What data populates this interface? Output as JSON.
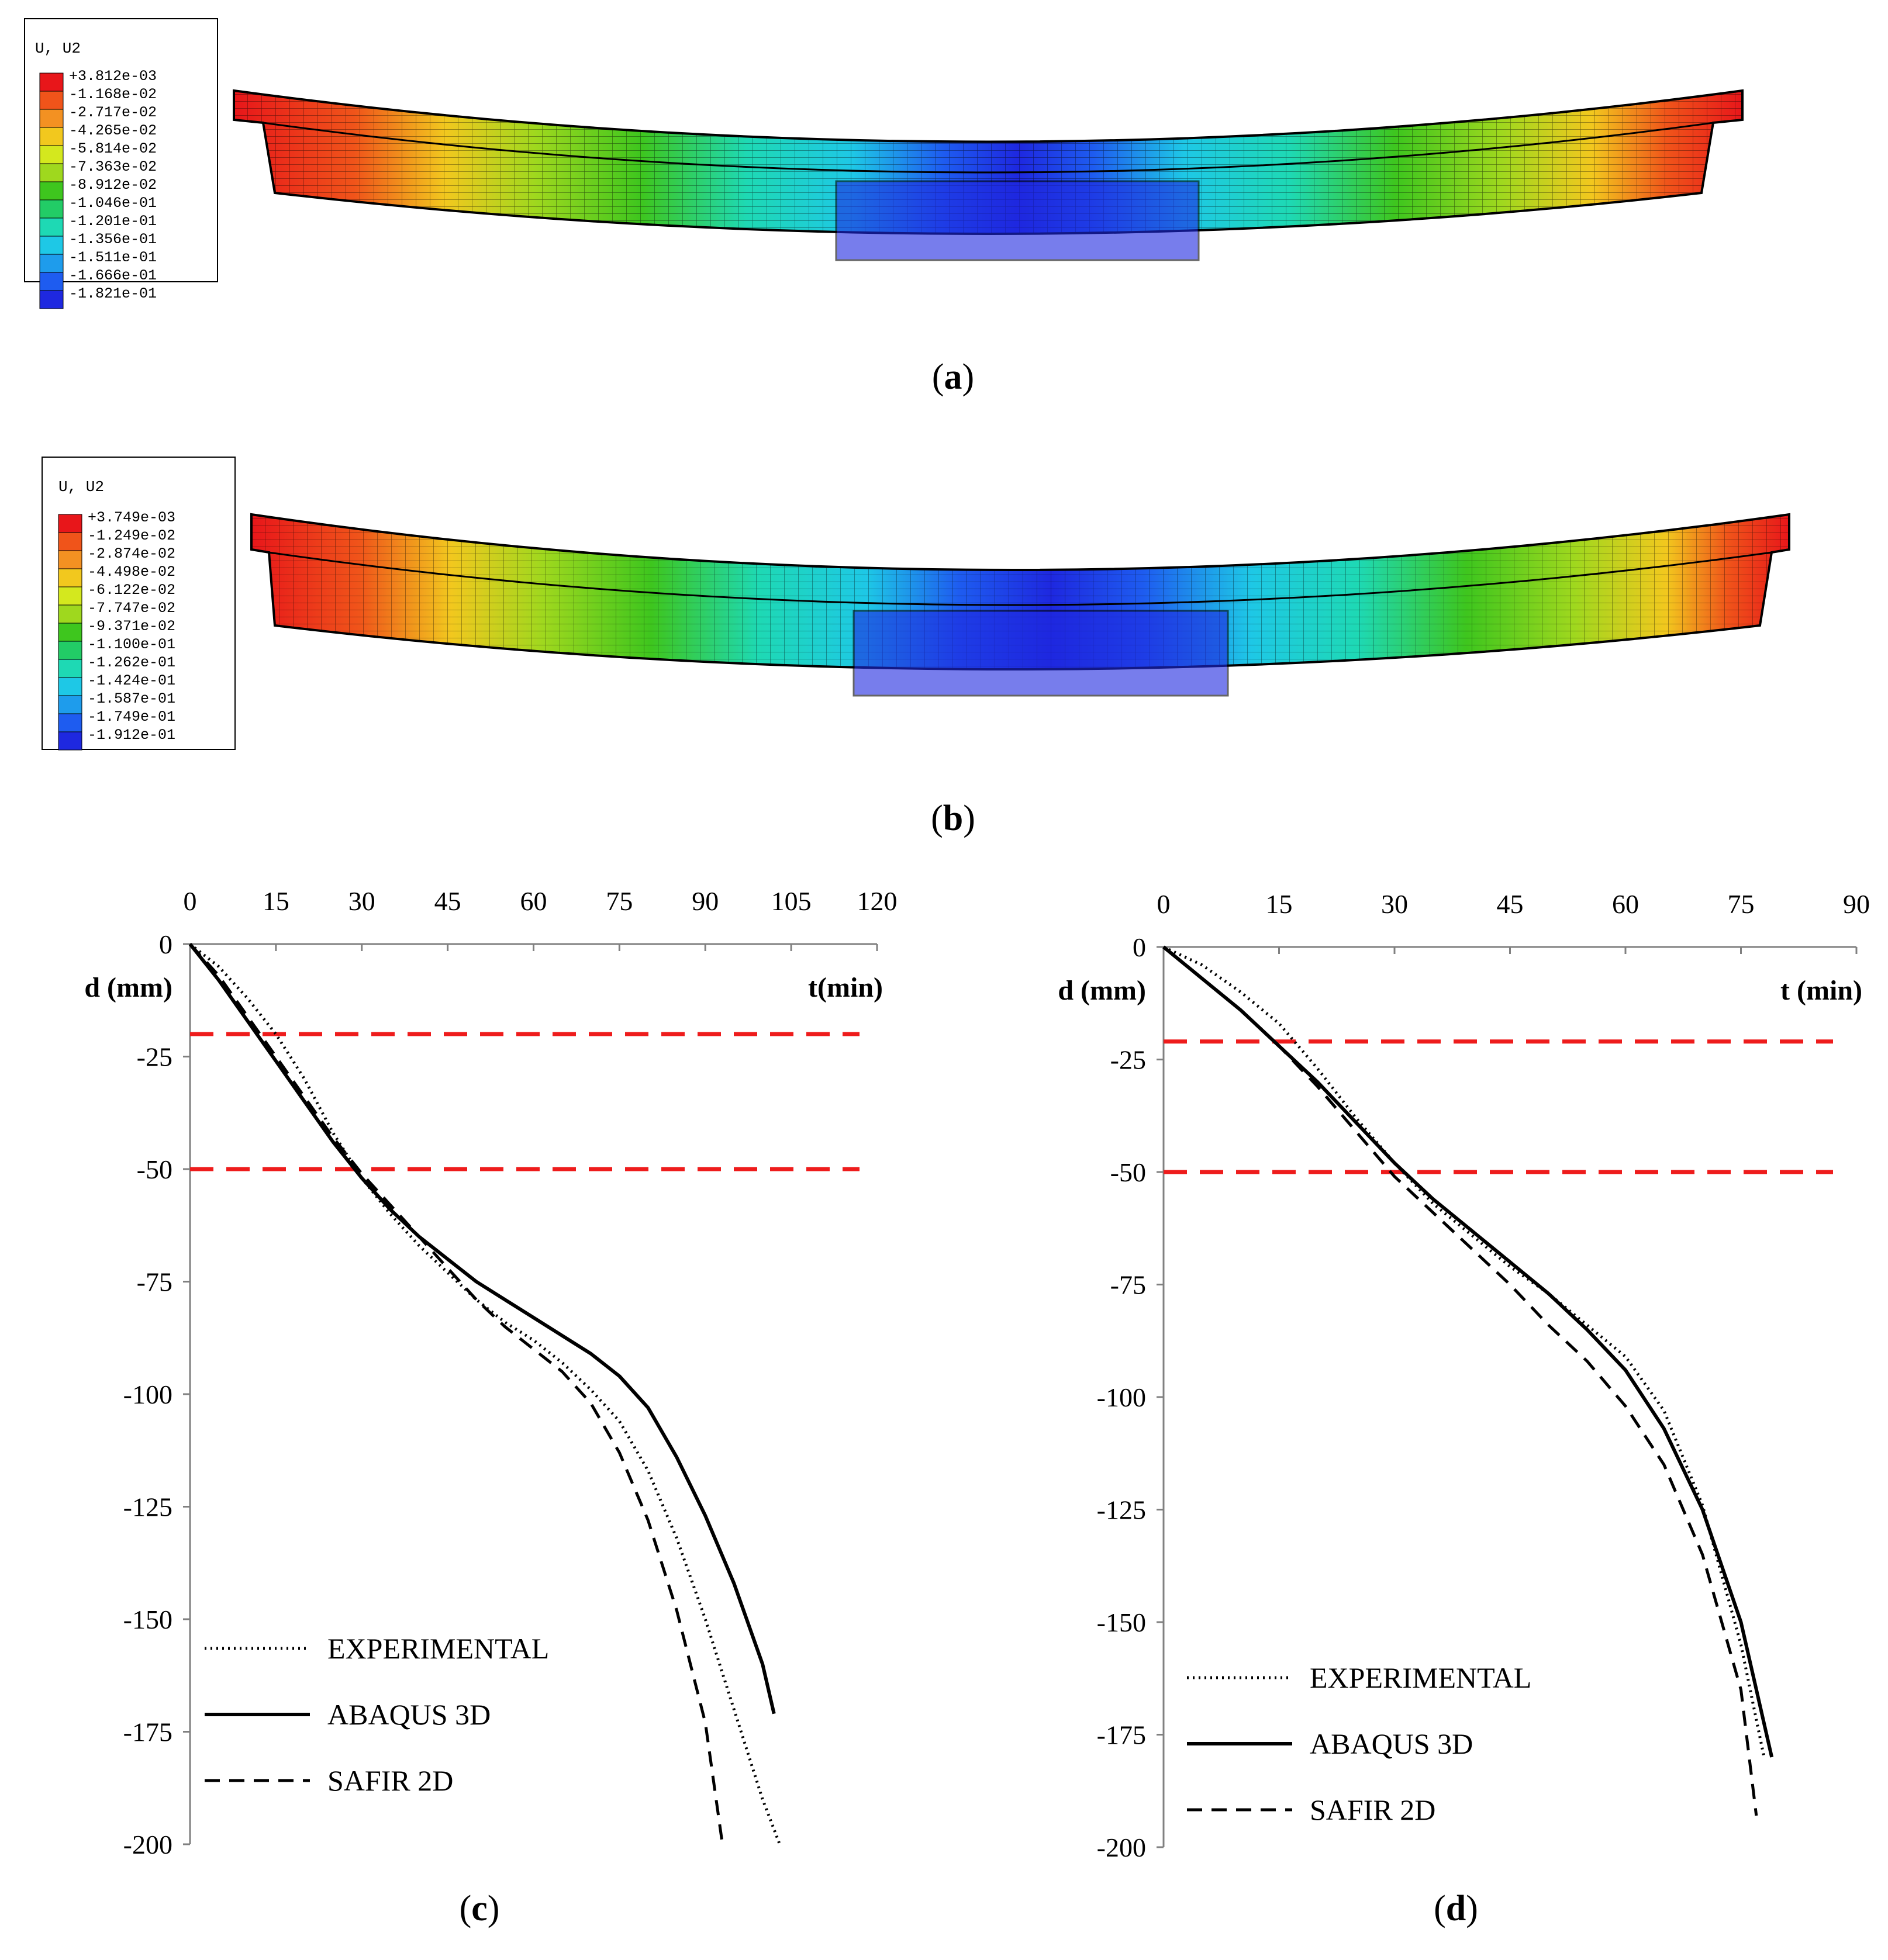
{
  "panels": {
    "a": {
      "caption": "a",
      "legend_title": "U, U2",
      "legend_values": [
        "+3.812e-03",
        "-1.168e-02",
        "-2.717e-02",
        "-4.265e-02",
        "-5.814e-02",
        "-7.363e-02",
        "-8.912e-02",
        "-1.046e-01",
        "-1.201e-01",
        "-1.356e-01",
        "-1.511e-01",
        "-1.666e-01",
        "-1.821e-01"
      ]
    },
    "b": {
      "caption": "b",
      "legend_title": "U, U2",
      "legend_values": [
        "+3.749e-03",
        "-1.249e-02",
        "-2.874e-02",
        "-4.498e-02",
        "-6.122e-02",
        "-7.747e-02",
        "-9.371e-02",
        "-1.100e-01",
        "-1.262e-01",
        "-1.424e-01",
        "-1.587e-01",
        "-1.749e-01",
        "-1.912e-01"
      ]
    },
    "c": {
      "caption": "c"
    },
    "d": {
      "caption": "d"
    }
  },
  "legend_colors": [
    "#e8161a",
    "#f0541a",
    "#f39122",
    "#f2c81e",
    "#d4e81e",
    "#9fd81e",
    "#3ec61e",
    "#22cc66",
    "#1ed9b4",
    "#1ec8e6",
    "#1e9cec",
    "#1e5cf0",
    "#1e28e0"
  ],
  "chart_data": [
    {
      "id": "c",
      "type": "line",
      "xlabel": "t(min)",
      "ylabel": "d (mm)",
      "xlim": [
        0,
        120
      ],
      "ylim": [
        -200,
        0
      ],
      "xticks": [
        0,
        15,
        30,
        45,
        60,
        75,
        90,
        105,
        120
      ],
      "yticks": [
        0,
        -25,
        -50,
        -75,
        -100,
        -125,
        -150,
        -175,
        -200
      ],
      "reference_lines": [
        -20,
        -50
      ],
      "legend": [
        "EXPERIMENTAL",
        "ABAQUS 3D",
        "SAFIR 2D"
      ],
      "series": [
        {
          "name": "EXPERIMENTAL",
          "style": "dotted",
          "x": [
            0,
            5,
            10,
            15,
            20,
            25,
            30,
            35,
            40,
            45,
            50,
            55,
            60,
            65,
            70,
            75,
            80,
            85,
            90,
            95,
            100,
            103
          ],
          "y": [
            0,
            -5,
            -12,
            -20,
            -30,
            -42,
            -52,
            -60,
            -67,
            -73,
            -79,
            -84,
            -88,
            -93,
            -99,
            -106,
            -117,
            -132,
            -150,
            -170,
            -190,
            -200
          ]
        },
        {
          "name": "ABAQUS 3D",
          "style": "solid",
          "x": [
            0,
            5,
            10,
            15,
            20,
            25,
            30,
            35,
            40,
            45,
            50,
            55,
            60,
            65,
            70,
            75,
            80,
            85,
            90,
            95,
            100,
            102
          ],
          "y": [
            0,
            -8,
            -17,
            -26,
            -35,
            -44,
            -52,
            -59,
            -65,
            -70,
            -75,
            -79,
            -83,
            -87,
            -91,
            -96,
            -103,
            -114,
            -127,
            -142,
            -160,
            -171
          ]
        },
        {
          "name": "SAFIR 2D",
          "style": "dashed",
          "x": [
            0,
            5,
            10,
            15,
            20,
            25,
            30,
            35,
            40,
            45,
            50,
            55,
            60,
            65,
            70,
            75,
            80,
            85,
            90,
            93
          ],
          "y": [
            0,
            -7,
            -16,
            -25,
            -34,
            -43,
            -51,
            -58,
            -65,
            -72,
            -79,
            -85,
            -90,
            -95,
            -102,
            -113,
            -128,
            -148,
            -173,
            -200
          ]
        }
      ]
    },
    {
      "id": "d",
      "type": "line",
      "xlabel": "t (min)",
      "ylabel": "d (mm)",
      "xlim": [
        0,
        90
      ],
      "ylim": [
        -200,
        0
      ],
      "xticks": [
        0,
        15,
        30,
        45,
        60,
        75,
        90
      ],
      "yticks": [
        0,
        -25,
        -50,
        -75,
        -100,
        -125,
        -150,
        -175,
        -200
      ],
      "reference_lines": [
        -21,
        -50
      ],
      "legend": [
        "EXPERIMENTAL",
        "ABAQUS 3D",
        "SAFIR 2D"
      ],
      "series": [
        {
          "name": "EXPERIMENTAL",
          "style": "dotted",
          "x": [
            0,
            5,
            10,
            15,
            20,
            25,
            30,
            35,
            40,
            45,
            50,
            55,
            60,
            65,
            70,
            75,
            78
          ],
          "y": [
            0,
            -4,
            -10,
            -17,
            -27,
            -38,
            -48,
            -57,
            -64,
            -71,
            -77,
            -84,
            -91,
            -103,
            -124,
            -155,
            -180
          ]
        },
        {
          "name": "ABAQUS 3D",
          "style": "solid",
          "x": [
            0,
            5,
            10,
            15,
            20,
            25,
            30,
            35,
            40,
            45,
            50,
            55,
            60,
            65,
            70,
            75,
            79
          ],
          "y": [
            0,
            -7,
            -14,
            -22,
            -30,
            -39,
            -48,
            -56,
            -63,
            -70,
            -77,
            -85,
            -94,
            -107,
            -125,
            -150,
            -180
          ]
        },
        {
          "name": "SAFIR 2D",
          "style": "dashed",
          "x": [
            0,
            5,
            10,
            15,
            20,
            25,
            30,
            35,
            40,
            45,
            50,
            55,
            60,
            65,
            70,
            75,
            77
          ],
          "y": [
            0,
            -7,
            -14,
            -22,
            -31,
            -41,
            -51,
            -59,
            -67,
            -75,
            -84,
            -92,
            -102,
            -115,
            -135,
            -165,
            -193
          ]
        }
      ]
    }
  ]
}
